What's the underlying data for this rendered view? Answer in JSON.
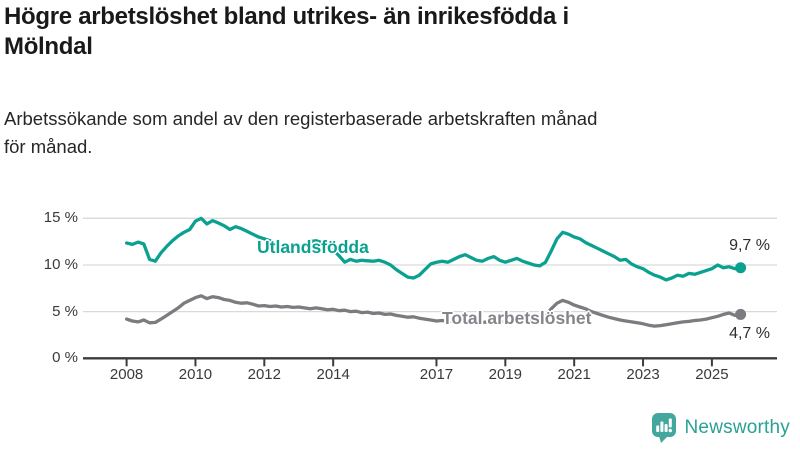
{
  "header": {
    "title": "Högre arbetslöshet bland utrikes- än inrikesfödda i Mölndal",
    "title_lines": [
      "Högre arbetslöshet bland utrikes- än inrikesfödda i",
      "Mölndal"
    ],
    "subtitle": "Arbetssökande som andel av den registerbaserade arbetskraften månad för månad.",
    "subtitle_lines": [
      "Arbetssökande som andel av den registerbaserade arbetskraften månad",
      "för månad."
    ]
  },
  "chart_data": {
    "type": "line",
    "title": "Högre arbetslöshet bland utrikes- än inrikesfödda i Mölndal",
    "xlabel": "",
    "ylabel": "",
    "unit": "%",
    "x_unit": "decimal year, monthly data",
    "x_start": 2008.0,
    "x_step": 0.16667,
    "x_end": 2025.83,
    "ylim": [
      0,
      16.6
    ],
    "grid": "horizontal",
    "legend_position": "inline-labels",
    "y_ticks": {
      "values": [
        15,
        10,
        5,
        0
      ],
      "labels": [
        "15 %",
        "10 %",
        "5 %",
        "0 %"
      ]
    },
    "x_ticks": {
      "values": [
        2008,
        2010,
        2012,
        2014,
        2017,
        2019,
        2021,
        2023,
        2025
      ],
      "labels": [
        "2008",
        "2010",
        "2012",
        "2014",
        "2017",
        "2019",
        "2021",
        "2023",
        "2025"
      ]
    },
    "series": [
      {
        "name": "Utlandsfödda",
        "color": "#0aa191",
        "end_label": "9,7 %",
        "end_value": 9.7,
        "values": [
          12.35,
          12.2,
          12.45,
          12.25,
          10.6,
          10.4,
          11.3,
          12.0,
          12.6,
          13.1,
          13.5,
          13.8,
          14.7,
          15.0,
          14.4,
          14.75,
          14.5,
          14.2,
          13.8,
          14.1,
          13.9,
          13.6,
          13.3,
          13.0,
          12.8,
          12.6,
          12.2,
          12.0,
          12.1,
          11.9,
          12.0,
          12.2,
          12.5,
          12.6,
          12.4,
          12.1,
          11.6,
          11.0,
          10.3,
          10.6,
          10.4,
          10.5,
          10.45,
          10.4,
          10.5,
          10.3,
          10.0,
          9.5,
          9.1,
          8.7,
          8.6,
          8.9,
          9.5,
          10.1,
          10.3,
          10.4,
          10.3,
          10.6,
          10.9,
          11.1,
          10.8,
          10.5,
          10.4,
          10.7,
          10.9,
          10.5,
          10.3,
          10.5,
          10.7,
          10.4,
          10.2,
          10.0,
          9.9,
          10.3,
          11.5,
          12.8,
          13.5,
          13.3,
          13.0,
          12.8,
          12.4,
          12.1,
          11.8,
          11.5,
          11.2,
          10.9,
          10.5,
          10.6,
          10.1,
          9.8,
          9.6,
          9.2,
          8.9,
          8.7,
          8.4,
          8.6,
          8.9,
          8.8,
          9.1,
          9.0,
          9.2,
          9.4,
          9.6,
          10.0,
          9.7,
          9.8,
          9.6,
          9.7
        ]
      },
      {
        "name": "Total arbetslöshet",
        "color": "#7b7b80",
        "end_label": "4,7 %",
        "end_value": 4.7,
        "values": [
          4.2,
          4.0,
          3.9,
          4.1,
          3.8,
          3.85,
          4.2,
          4.6,
          5.0,
          5.4,
          5.9,
          6.2,
          6.5,
          6.7,
          6.4,
          6.6,
          6.5,
          6.3,
          6.2,
          6.0,
          5.9,
          5.95,
          5.8,
          5.6,
          5.65,
          5.55,
          5.6,
          5.5,
          5.55,
          5.45,
          5.5,
          5.4,
          5.3,
          5.4,
          5.3,
          5.2,
          5.25,
          5.1,
          5.15,
          5.0,
          5.05,
          4.9,
          4.95,
          4.8,
          4.85,
          4.7,
          4.75,
          4.6,
          4.5,
          4.4,
          4.45,
          4.3,
          4.2,
          4.1,
          4.0,
          4.05,
          3.95,
          4.0,
          3.9,
          3.95,
          3.9,
          3.95,
          3.85,
          3.9,
          3.95,
          3.9,
          3.95,
          4.0,
          4.05,
          4.0,
          4.05,
          4.1,
          4.2,
          4.6,
          5.3,
          5.9,
          6.2,
          6.0,
          5.7,
          5.5,
          5.3,
          5.0,
          4.8,
          4.6,
          4.4,
          4.25,
          4.1,
          4.0,
          3.9,
          3.8,
          3.7,
          3.55,
          3.45,
          3.5,
          3.6,
          3.7,
          3.8,
          3.9,
          3.95,
          4.05,
          4.1,
          4.2,
          4.35,
          4.5,
          4.7,
          4.85,
          4.6,
          4.7
        ]
      }
    ],
    "colors": {
      "grid": "#d9d9d9",
      "axis": "#3c3c3c",
      "tick_text": "#3a3a3a"
    }
  },
  "branding": {
    "wordmark": "Newsworthy",
    "logo_icon": "speech-bubble-bar-chart",
    "color": "#2aa096"
  }
}
